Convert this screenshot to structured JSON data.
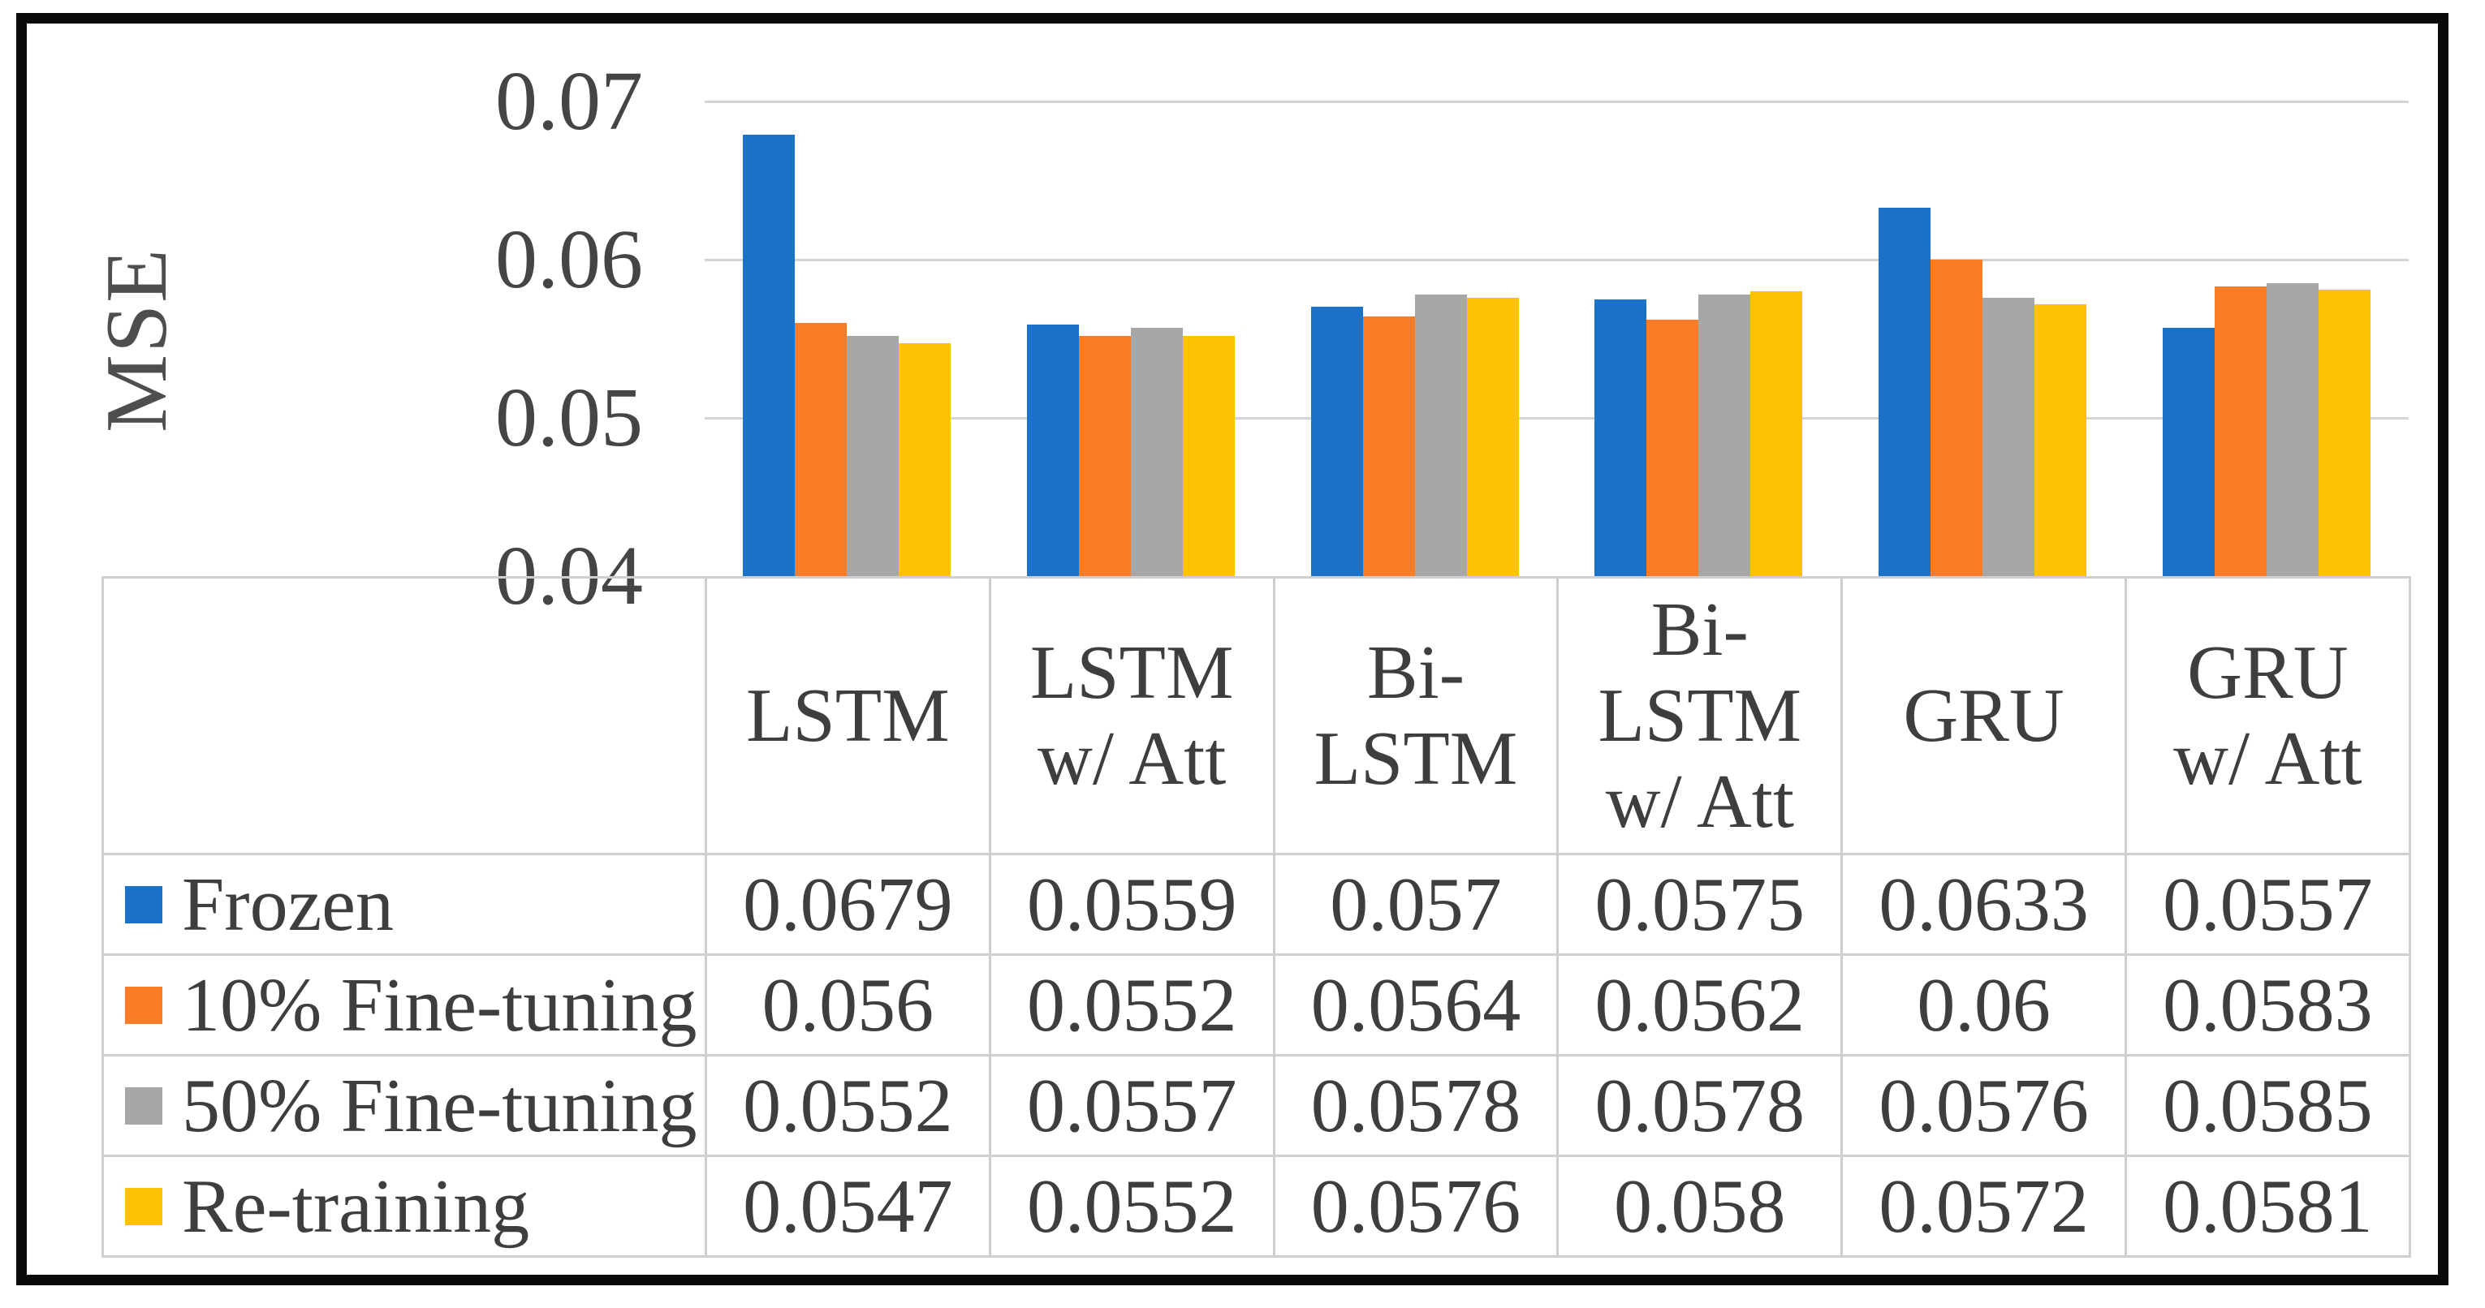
{
  "figure": {
    "y_axis_title": "MSE"
  },
  "chart_data": {
    "type": "bar",
    "title": "",
    "xlabel": "",
    "ylabel": "MSE",
    "categories": [
      "LSTM",
      "LSTM w/ Att",
      "Bi-LSTM",
      "Bi-LSTM w/ Att",
      "GRU",
      "GRU w/ Att"
    ],
    "category_display_lines": [
      [
        "LSTM"
      ],
      [
        "LSTM",
        "w/ Att"
      ],
      [
        "Bi-",
        "LSTM"
      ],
      [
        "Bi-",
        "LSTM",
        "w/ Att"
      ],
      [
        "GRU"
      ],
      [
        "GRU",
        "w/ Att"
      ]
    ],
    "series": [
      {
        "name": "Frozen",
        "color": "#1b73c8",
        "values": [
          0.0679,
          0.0559,
          0.057,
          0.0575,
          0.0633,
          0.0557
        ],
        "labels": [
          "0.0679",
          "0.0559",
          "0.057",
          "0.0575",
          "0.0633",
          "0.0557"
        ]
      },
      {
        "name": "10% Fine-tuning",
        "color": "#f97d26",
        "values": [
          0.056,
          0.0552,
          0.0564,
          0.0562,
          0.06,
          0.0583
        ],
        "labels": [
          "0.056",
          "0.0552",
          "0.0564",
          "0.0562",
          "0.06",
          "0.0583"
        ]
      },
      {
        "name": "50% Fine-tuning",
        "color": "#a7a7a7",
        "values": [
          0.0552,
          0.0557,
          0.0578,
          0.0578,
          0.0576,
          0.0585
        ],
        "labels": [
          "0.0552",
          "0.0557",
          "0.0578",
          "0.0578",
          "0.0576",
          "0.0585"
        ]
      },
      {
        "name": "Re-training",
        "color": "#ffc203",
        "values": [
          0.0547,
          0.0552,
          0.0576,
          0.058,
          0.0572,
          0.0581
        ],
        "labels": [
          "0.0547",
          "0.0552",
          "0.0576",
          "0.058",
          "0.0572",
          "0.0581"
        ]
      }
    ],
    "ylim": [
      0.04,
      0.07
    ],
    "yticks": [
      "0.07",
      "0.06",
      "0.05",
      "0.04"
    ],
    "grid": true,
    "legend_position": "table-rows-left"
  },
  "style": {
    "gridline_color": "#d4d4d4",
    "table_border_color": "#cfcfcf",
    "text_color": "#3e3e3e",
    "frame_color": "#0a0a0a"
  }
}
